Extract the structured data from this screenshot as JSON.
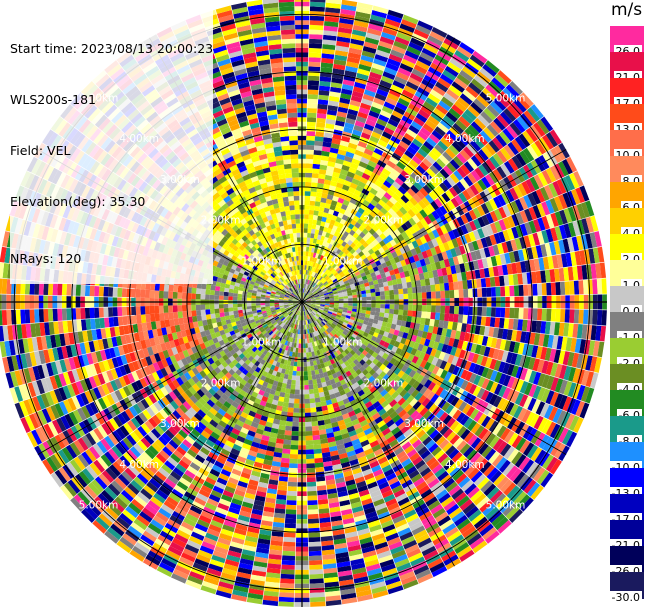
{
  "info": {
    "start_time": "Start time: 2023/08/13 20:00:23",
    "instrument": "WLS200s-181",
    "field": "Field: VEL",
    "elevation": "Elevation(deg): 35.30",
    "nrays": "NRays: 120"
  },
  "colorbar": {
    "unit": "m/s",
    "bins": [
      {
        "label": "26.0",
        "color": "#ff2a9f"
      },
      {
        "label": "21.0",
        "color": "#e8104a"
      },
      {
        "label": "17.0",
        "color": "#ff2222"
      },
      {
        "label": "13.0",
        "color": "#ff4b1a"
      },
      {
        "label": "10.0",
        "color": "#ff6e4a"
      },
      {
        "label": "8.0",
        "color": "#ff8a5c"
      },
      {
        "label": "6.0",
        "color": "#ffa500"
      },
      {
        "label": "4.0",
        "color": "#ffd000"
      },
      {
        "label": "2.0",
        "color": "#ffff00"
      },
      {
        "label": "1.0",
        "color": "#ffff99"
      },
      {
        "label": "0.0",
        "color": "#c8c8c8"
      },
      {
        "label": "-1.0",
        "color": "#808080"
      },
      {
        "label": "-2.0",
        "color": "#9acd32"
      },
      {
        "label": "-4.0",
        "color": "#6b8e23"
      },
      {
        "label": "-6.0",
        "color": "#228b22"
      },
      {
        "label": "-8.0",
        "color": "#1a9a8a"
      },
      {
        "label": "-10.0",
        "color": "#1e90ff"
      },
      {
        "label": "-13.0",
        "color": "#0000ff"
      },
      {
        "label": "-17.0",
        "color": "#0000c0"
      },
      {
        "label": "-21.0",
        "color": "#000099"
      },
      {
        "label": "-26.0",
        "color": "#00005a"
      },
      {
        "label": "-30.0",
        "color": "#1a1a5e"
      }
    ]
  },
  "chart_data": {
    "type": "heatmap",
    "projection": "polar PPI",
    "field": "VEL",
    "unit": "m/s",
    "nrays": 120,
    "value_range": [
      -30.0,
      26.0
    ],
    "range_rings": [
      {
        "label": "1.00km",
        "km": 1
      },
      {
        "label": "2.00km",
        "km": 2
      },
      {
        "label": "3.00km",
        "km": 3
      },
      {
        "label": "4.00km",
        "km": 4
      },
      {
        "label": "5.00km",
        "km": 5
      }
    ],
    "max_range_km": 5.3,
    "grid": true,
    "pattern": {
      "near_field": "mostly green/olive (-2 to -4 m/s) and grey, with a yellow patch (2 m/s) north of radar",
      "mid_field": "yellow band north (2 m/s), orange-red patch to the west (10-13 m/s)",
      "far_field": "noisy random velocities across the full color scale"
    }
  }
}
